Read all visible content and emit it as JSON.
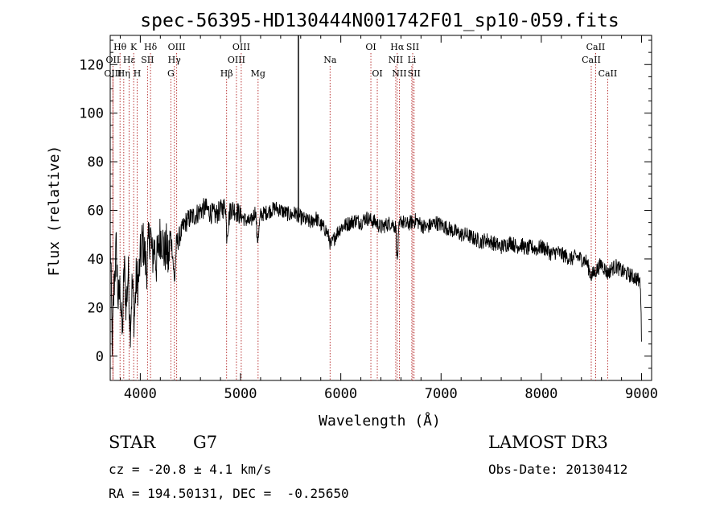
{
  "chart_data": {
    "type": "line",
    "title": "spec-56395-HD130444N001742F01_sp10-059.fits",
    "xlabel": "Wavelength (Å)",
    "ylabel": "Flux (relative)",
    "xlim": [
      3700,
      9100
    ],
    "ylim": [
      -10,
      132
    ],
    "x_ticks": [
      4000,
      5000,
      6000,
      7000,
      8000,
      9000
    ],
    "y_ticks": [
      0,
      20,
      40,
      60,
      80,
      100,
      120
    ],
    "grid": false,
    "series": [
      {
        "name": "flux",
        "x": [
          3700,
          3720,
          3740,
          3760,
          3780,
          3800,
          3820,
          3840,
          3860,
          3880,
          3900,
          3920,
          3940,
          3960,
          3980,
          4000,
          4020,
          4040,
          4060,
          4080,
          4100,
          4120,
          4140,
          4160,
          4180,
          4200,
          4220,
          4240,
          4260,
          4280,
          4300,
          4320,
          4340,
          4360,
          4380,
          4400,
          4450,
          4500,
          4550,
          4600,
          4650,
          4700,
          4750,
          4800,
          4850,
          4861,
          4900,
          4950,
          5000,
          5050,
          5100,
          5150,
          5167,
          5183,
          5200,
          5250,
          5300,
          5350,
          5400,
          5450,
          5500,
          5550,
          5600,
          5650,
          5700,
          5750,
          5800,
          5850,
          5890,
          5896,
          5950,
          6000,
          6050,
          6100,
          6150,
          6200,
          6250,
          6300,
          6350,
          6400,
          6450,
          6500,
          6550,
          6563,
          6580,
          6600,
          6650,
          6700,
          6750,
          6800,
          6850,
          6900,
          6950,
          7000,
          7050,
          7100,
          7150,
          7200,
          7250,
          7300,
          7350,
          7400,
          7450,
          7500,
          7550,
          7600,
          7650,
          7700,
          7750,
          7800,
          7850,
          7900,
          7950,
          8000,
          8050,
          8100,
          8150,
          8200,
          8250,
          8300,
          8350,
          8400,
          8450,
          8498,
          8542,
          8600,
          8662,
          8700,
          8750,
          8800,
          8850,
          8900,
          8950,
          8990,
          9000
        ],
        "y": [
          50,
          5,
          30,
          45,
          22,
          28,
          8,
          38,
          20,
          35,
          12,
          30,
          15,
          32,
          30,
          40,
          48,
          44,
          35,
          45,
          52,
          40,
          46,
          38,
          44,
          50,
          48,
          42,
          45,
          38,
          50,
          44,
          30,
          46,
          48,
          50,
          55,
          57,
          58,
          60,
          61,
          59,
          58,
          60,
          62,
          50,
          61,
          60,
          58,
          56,
          55,
          60,
          47,
          52,
          58,
          59,
          60,
          61,
          60,
          59,
          58,
          59,
          57,
          56,
          55,
          57,
          54,
          52,
          48,
          45,
          50,
          53,
          54,
          55,
          56,
          55,
          57,
          56,
          55,
          53,
          54,
          55,
          53,
          38,
          52,
          56,
          54,
          55,
          56,
          54,
          53,
          54,
          55,
          54,
          53,
          52,
          51,
          50,
          50,
          49,
          48,
          47,
          48,
          47,
          46,
          45,
          46,
          47,
          45,
          46,
          44,
          45,
          44,
          45,
          44,
          42,
          43,
          42,
          41,
          40,
          41,
          40,
          39,
          33,
          35,
          38,
          34,
          36,
          37,
          35,
          34,
          33,
          32,
          30,
          5
        ]
      }
    ],
    "spectral_lines": [
      {
        "label": "Hθ",
        "wavelength": 3798,
        "row": 0
      },
      {
        "label": "OII",
        "wavelength": 3727,
        "row": 1
      },
      {
        "label": "OIII",
        "wavelength": 3727,
        "row": 2
      },
      {
        "label": "Hε",
        "wavelength": 3889,
        "row": 1
      },
      {
        "label": "K",
        "wavelength": 3934,
        "row": 0
      },
      {
        "label": "Hη",
        "wavelength": 3835,
        "row": 2
      },
      {
        "label": "H",
        "wavelength": 3969,
        "row": 2
      },
      {
        "label": "SII",
        "wavelength": 4072,
        "row": 1
      },
      {
        "label": "Hδ",
        "wavelength": 4102,
        "row": 0
      },
      {
        "label": "OIII",
        "wavelength": 4363,
        "row": 0
      },
      {
        "label": "Hγ",
        "wavelength": 4340,
        "row": 1
      },
      {
        "label": "G",
        "wavelength": 4305,
        "row": 2
      },
      {
        "label": "Hβ",
        "wavelength": 4861,
        "row": 2
      },
      {
        "label": "OIII",
        "wavelength": 5007,
        "row": 0
      },
      {
        "label": "OIII",
        "wavelength": 4959,
        "row": 1
      },
      {
        "label": "Mg",
        "wavelength": 5175,
        "row": 2
      },
      {
        "label": "Na",
        "wavelength": 5893,
        "row": 1
      },
      {
        "label": "OI",
        "wavelength": 6300,
        "row": 0
      },
      {
        "label": "OI",
        "wavelength": 6364,
        "row": 2
      },
      {
        "label": "Hα",
        "wavelength": 6563,
        "row": 0
      },
      {
        "label": "NII",
        "wavelength": 6548,
        "row": 1
      },
      {
        "label": "NII",
        "wavelength": 6584,
        "row": 2
      },
      {
        "label": "SII",
        "wavelength": 6717,
        "row": 0
      },
      {
        "label": "Li",
        "wavelength": 6708,
        "row": 1
      },
      {
        "label": "SII",
        "wavelength": 6731,
        "row": 2
      },
      {
        "label": "CaII",
        "wavelength": 8542,
        "row": 0
      },
      {
        "label": "CaII",
        "wavelength": 8498,
        "row": 1
      },
      {
        "label": "CaII",
        "wavelength": 8662,
        "row": 2
      }
    ],
    "marker_line_x": 5577
  },
  "info": {
    "object_class": "STAR",
    "subclass": "G7",
    "survey": "LAMOST DR3",
    "redshift": "cz = -20.8 ± 4.1 km/s",
    "obs_date": "Obs-Date: 20130412",
    "coords": "RA = 194.50131, DEC =  -0.25650"
  }
}
